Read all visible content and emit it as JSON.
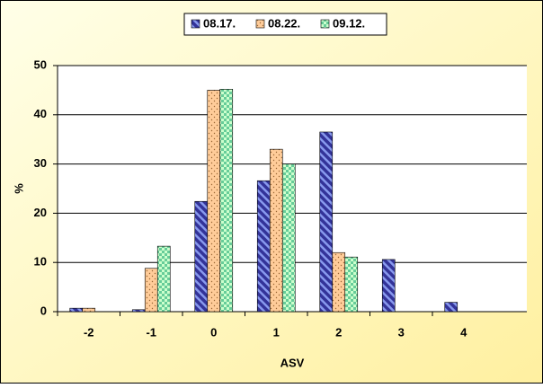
{
  "chart_data": {
    "type": "bar",
    "x_label": "ASV",
    "y_label": "%",
    "categories": [
      "-2",
      "-1",
      "0",
      "1",
      "2",
      "3",
      "4"
    ],
    "series": [
      {
        "name": "08.17.",
        "color": "#333399",
        "values": [
          0.7,
          0.4,
          22.4,
          26.6,
          36.5,
          10.6,
          1.9
        ]
      },
      {
        "name": "08.22.",
        "color": "#ffcc99",
        "values": [
          0.7,
          8.8,
          45,
          33,
          12,
          null,
          null
        ]
      },
      {
        "name": "09.12.",
        "color": "#66cc99",
        "values": [
          null,
          13.3,
          45.2,
          30,
          11.1,
          null,
          null
        ]
      }
    ],
    "ylim": [
      0,
      50
    ],
    "yticks": [
      0,
      10,
      20,
      30,
      40,
      50
    ],
    "grid": true,
    "legend": "top"
  }
}
